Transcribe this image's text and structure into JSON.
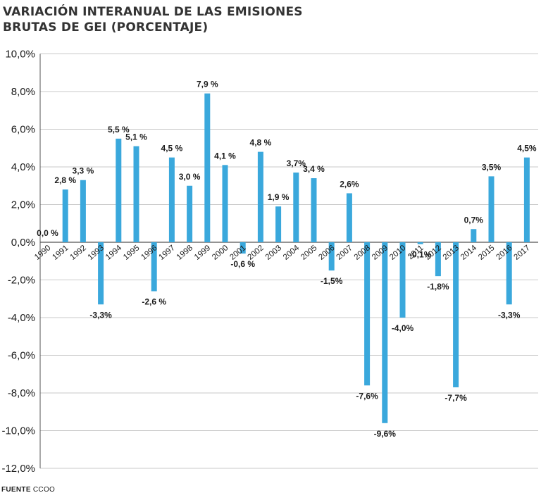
{
  "title": {
    "line1": "VARIACIÓN INTERANUAL DE LAS EMISIONES",
    "line2": "BRUTAS DE GEI (PORCENTAJE)"
  },
  "source": {
    "label": "FUENTE",
    "value": "CCOO"
  },
  "colors": {
    "bar": "#3aa8dc",
    "grid": "#c8c8c8",
    "axis": "#555555",
    "text": "#1a1a1a"
  },
  "chart_data": {
    "type": "bar",
    "categories": [
      "1990",
      "1991",
      "1992",
      "1993",
      "1994",
      "1995",
      "1996",
      "1997",
      "1998",
      "1999",
      "2000",
      "2001",
      "2002",
      "2003",
      "2004",
      "2005",
      "2006",
      "2007",
      "2008",
      "2009",
      "2010",
      "2011",
      "2012",
      "2013",
      "2014",
      "2015",
      "2016",
      "2017"
    ],
    "values": [
      0.0,
      2.8,
      3.3,
      -3.3,
      5.5,
      5.1,
      -2.6,
      4.5,
      3.0,
      7.9,
      4.1,
      -0.6,
      4.8,
      1.9,
      3.7,
      3.4,
      -1.5,
      2.6,
      -7.6,
      -9.6,
      -4.0,
      -0.1,
      -1.8,
      -7.7,
      0.7,
      3.5,
      -3.3,
      4.5
    ],
    "data_labels": [
      "0,0 %",
      "2,8 %",
      "3,3 %",
      "-3,3%",
      "5,5 %",
      "5,1 %",
      "-2,6 %",
      "4,5 %",
      "3,0 %",
      "7,9 %",
      "4,1 %",
      "-0,6 %",
      "4,8 %",
      "1,9 %",
      "3,7%",
      "3,4 %",
      "-1,5%",
      "2,6%",
      "-7,6%",
      "-9,6%",
      "-4,0%",
      "-0,1%",
      "-1,8%",
      "-7,7%",
      "0,7%",
      "3,5%",
      "-3,3%",
      "4,5%"
    ],
    "yticks": [
      10,
      8,
      6,
      4,
      2,
      0,
      -2,
      -4,
      -6,
      -8,
      -10,
      -12
    ],
    "ytick_labels": [
      "10,0%",
      "8,0%",
      "6,0%",
      "4,0%",
      "2,0%",
      "0,0%",
      "-2,0%",
      "-4,0%",
      "-6,0%",
      "-8,0%",
      "-10,0%",
      "-12,0%"
    ],
    "ylim": [
      -12,
      10
    ],
    "grid": true,
    "legend": "none"
  }
}
